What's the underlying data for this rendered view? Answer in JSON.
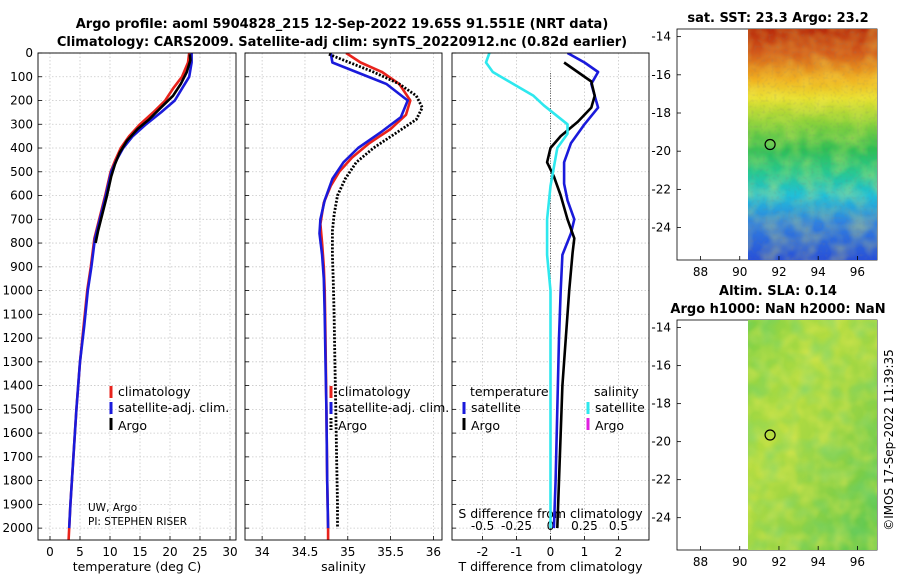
{
  "header": {
    "title_line1": "Argo profile: aoml 5904828_215 12-Sep-2022 19.65S 91.551E (NRT data)",
    "title_line2": "Climatology: CARS2009. Satellite-adj clim: synTS_20220912.nc (0.82d earlier)"
  },
  "colors": {
    "climatology": "#e8231c",
    "satellite": "#1a1adb",
    "argo": "#000000",
    "sat_salinity": "#2ee8ee",
    "argo_salinity": "#e020e0",
    "grid": "#c8c8c8"
  },
  "credit": {
    "line1": "UW, Argo",
    "line2": "PI: STEPHEN RISER"
  },
  "chart_data": [
    {
      "name": "temperature-profile",
      "type": "line",
      "xlabel": "temperature (deg C)",
      "xlim": [
        -2,
        31
      ],
      "xticks": [
        0,
        5,
        10,
        15,
        20,
        25,
        30
      ],
      "ylim": [
        2050,
        0
      ],
      "yticks": [
        0,
        100,
        200,
        300,
        400,
        500,
        600,
        700,
        800,
        900,
        1000,
        1100,
        1200,
        1300,
        1400,
        1500,
        1600,
        1700,
        1800,
        1900,
        2000
      ],
      "legend": [
        "climatology",
        "satellite-adj. clim.",
        "Argo"
      ],
      "series": [
        {
          "name": "climatology",
          "color": "#e8231c",
          "style": "solid",
          "points": [
            [
              23.2,
              0
            ],
            [
              23.0,
              40
            ],
            [
              22.0,
              100
            ],
            [
              20.5,
              150
            ],
            [
              19.2,
              200
            ],
            [
              17.2,
              250
            ],
            [
              15.0,
              300
            ],
            [
              13.2,
              350
            ],
            [
              11.8,
              400
            ],
            [
              10.9,
              450
            ],
            [
              10.1,
              500
            ],
            [
              9.2,
              600
            ],
            [
              8.2,
              700
            ],
            [
              7.4,
              780
            ],
            [
              6.8,
              900
            ],
            [
              6.2,
              1000
            ],
            [
              5.6,
              1150
            ],
            [
              5.0,
              1300
            ],
            [
              4.4,
              1500
            ],
            [
              3.9,
              1700
            ],
            [
              3.4,
              1900
            ],
            [
              3.2,
              2000
            ],
            [
              3.1,
              2050
            ]
          ]
        },
        {
          "name": "satellite-adj. clim.",
          "color": "#1a1adb",
          "style": "solid",
          "points": [
            [
              23.6,
              0
            ],
            [
              23.6,
              40
            ],
            [
              23.2,
              100
            ],
            [
              22.0,
              150
            ],
            [
              20.8,
              200
            ],
            [
              18.5,
              250
            ],
            [
              16.0,
              300
            ],
            [
              13.8,
              350
            ],
            [
              12.2,
              400
            ],
            [
              11.1,
              450
            ],
            [
              10.2,
              500
            ],
            [
              9.3,
              600
            ],
            [
              8.3,
              700
            ],
            [
              7.5,
              780
            ],
            [
              6.9,
              900
            ],
            [
              6.3,
              1000
            ],
            [
              5.7,
              1150
            ],
            [
              5.0,
              1300
            ],
            [
              4.4,
              1500
            ],
            [
              3.9,
              1700
            ],
            [
              3.4,
              1900
            ],
            [
              3.2,
              2000
            ]
          ]
        },
        {
          "name": "Argo",
          "color": "#000000",
          "style": "solid",
          "points": [
            [
              23.3,
              5
            ],
            [
              23.4,
              30
            ],
            [
              22.8,
              80
            ],
            [
              21.8,
              130
            ],
            [
              20.5,
              180
            ],
            [
              18.5,
              230
            ],
            [
              16.5,
              280
            ],
            [
              14.6,
              320
            ],
            [
              12.8,
              370
            ],
            [
              11.6,
              420
            ],
            [
              10.8,
              470
            ],
            [
              10.2,
              520
            ],
            [
              9.5,
              600
            ],
            [
              8.7,
              680
            ],
            [
              8.0,
              750
            ],
            [
              7.6,
              800
            ]
          ]
        }
      ]
    },
    {
      "name": "salinity-profile",
      "type": "line",
      "xlabel": "salinity",
      "xlim": [
        33.8,
        36.1
      ],
      "xticks": [
        34,
        34.5,
        35,
        35.5,
        36
      ],
      "ylim": [
        2050,
        0
      ],
      "legend": [
        "climatology",
        "satellite-adj. clim.",
        "Argo"
      ],
      "series": [
        {
          "name": "climatology",
          "color": "#e8231c",
          "style": "solid",
          "points": [
            [
              34.98,
              0
            ],
            [
              35.15,
              40
            ],
            [
              35.4,
              80
            ],
            [
              35.6,
              130
            ],
            [
              35.73,
              200
            ],
            [
              35.68,
              260
            ],
            [
              35.5,
              320
            ],
            [
              35.25,
              380
            ],
            [
              35.05,
              440
            ],
            [
              34.9,
              500
            ],
            [
              34.8,
              560
            ],
            [
              34.72,
              630
            ],
            [
              34.68,
              720
            ],
            [
              34.7,
              800
            ],
            [
              34.72,
              900
            ],
            [
              34.73,
              1000
            ],
            [
              34.74,
              1200
            ],
            [
              34.75,
              1500
            ],
            [
              34.76,
              1800
            ],
            [
              34.77,
              2000
            ],
            [
              34.77,
              2050
            ]
          ]
        },
        {
          "name": "satellite-adj. clim.",
          "color": "#1a1adb",
          "style": "solid",
          "points": [
            [
              34.8,
              0
            ],
            [
              34.82,
              40
            ],
            [
              35.1,
              80
            ],
            [
              35.45,
              130
            ],
            [
              35.7,
              200
            ],
            [
              35.62,
              270
            ],
            [
              35.4,
              330
            ],
            [
              35.12,
              400
            ],
            [
              34.95,
              460
            ],
            [
              34.82,
              530
            ],
            [
              34.73,
              620
            ],
            [
              34.68,
              700
            ],
            [
              34.67,
              760
            ],
            [
              34.7,
              850
            ],
            [
              34.72,
              950
            ],
            [
              34.73,
              1100
            ],
            [
              34.74,
              1300
            ],
            [
              34.75,
              1500
            ],
            [
              34.76,
              1800
            ],
            [
              34.77,
              2000
            ]
          ]
        },
        {
          "name": "Argo",
          "color": "#000000",
          "style": "dotted",
          "points": [
            [
              34.78,
              5
            ],
            [
              34.95,
              30
            ],
            [
              35.3,
              80
            ],
            [
              35.6,
              130
            ],
            [
              35.8,
              180
            ],
            [
              35.87,
              230
            ],
            [
              35.8,
              280
            ],
            [
              35.55,
              340
            ],
            [
              35.3,
              400
            ],
            [
              35.1,
              460
            ],
            [
              34.97,
              530
            ],
            [
              34.88,
              600
            ],
            [
              34.84,
              680
            ],
            [
              34.82,
              750
            ],
            [
              34.82,
              850
            ],
            [
              34.83,
              950
            ],
            [
              34.84,
              1100
            ],
            [
              34.85,
              1300
            ],
            [
              34.86,
              1500
            ],
            [
              34.87,
              1700
            ],
            [
              34.88,
              1900
            ],
            [
              34.88,
              2000
            ]
          ]
        }
      ]
    },
    {
      "name": "difference-profile",
      "type": "line",
      "xlabel": "T difference from climatology",
      "xlabel2": "S difference from climatology",
      "xlim": [
        -2.9,
        2.9
      ],
      "xticks": [
        -2,
        -1,
        0,
        1,
        2
      ],
      "xticks_top": [
        -0.5,
        -0.25,
        0,
        0.25,
        0.5
      ],
      "xtick_labels_top": [
        "-0.5",
        "-0.25",
        "0",
        "0.25",
        "0.5"
      ],
      "ylim": [
        2050,
        0
      ],
      "legend_temperature_title": "temperature",
      "legend_salinity_title": "salinity",
      "legend": [
        "satellite",
        "Argo",
        "satellite",
        "Argo"
      ],
      "series": [
        {
          "name": "temperature satellite",
          "color": "#1a1adb",
          "points": [
            [
              0.5,
              0
            ],
            [
              1.0,
              40
            ],
            [
              1.4,
              80
            ],
            [
              1.2,
              130
            ],
            [
              1.3,
              180
            ],
            [
              1.4,
              230
            ],
            [
              1.0,
              300
            ],
            [
              0.6,
              380
            ],
            [
              0.4,
              460
            ],
            [
              0.4,
              550
            ],
            [
              0.5,
              620
            ],
            [
              0.7,
              700
            ],
            [
              0.6,
              760
            ],
            [
              0.35,
              850
            ],
            [
              0.3,
              1000
            ],
            [
              0.25,
              1200
            ],
            [
              0.2,
              1500
            ],
            [
              0.15,
              1800
            ],
            [
              0.1,
              2000
            ]
          ]
        },
        {
          "name": "temperature Argo",
          "color": "#000000",
          "points": [
            [
              0.4,
              40
            ],
            [
              0.8,
              80
            ],
            [
              1.2,
              120
            ],
            [
              1.3,
              180
            ],
            [
              1.2,
              230
            ],
            [
              0.8,
              290
            ],
            [
              0.3,
              350
            ],
            [
              0.0,
              400
            ],
            [
              -0.1,
              460
            ],
            [
              0.1,
              520
            ],
            [
              0.3,
              600
            ],
            [
              0.5,
              700
            ],
            [
              0.7,
              780
            ],
            [
              0.65,
              840
            ],
            [
              0.6,
              920
            ],
            [
              0.55,
              1000
            ],
            [
              0.45,
              1200
            ],
            [
              0.35,
              1400
            ],
            [
              0.3,
              1600
            ],
            [
              0.25,
              1800
            ],
            [
              0.2,
              2000
            ]
          ]
        },
        {
          "name": "salinity satellite",
          "color": "#2ee8ee",
          "points": [
            [
              -1.8,
              0
            ],
            [
              -1.9,
              40
            ],
            [
              -1.7,
              80
            ],
            [
              -1.1,
              130
            ],
            [
              -0.5,
              180
            ],
            [
              -0.2,
              220
            ],
            [
              0.5,
              300
            ],
            [
              0.5,
              340
            ],
            [
              0.2,
              400
            ],
            [
              0.1,
              480
            ],
            [
              0.0,
              560
            ],
            [
              -0.1,
              700
            ],
            [
              -0.1,
              850
            ],
            [
              0.0,
              1000
            ],
            [
              0.0,
              1500
            ],
            [
              0.0,
              2000
            ]
          ]
        },
        {
          "name": "salinity Argo",
          "color": "#e020e0",
          "points": []
        }
      ]
    },
    {
      "name": "sst-map",
      "type": "heatmap",
      "title": "sat. SST: 23.3 Argo: 23.2",
      "xticks": [
        88,
        90,
        92,
        94,
        96
      ],
      "yticks": [
        -14,
        -16,
        -18,
        -20,
        -22,
        -24
      ],
      "xlim": [
        86.8,
        97
      ],
      "ylim": [
        -25.7,
        -13.6
      ],
      "marker": {
        "lon": 91.55,
        "lat": -19.65
      }
    },
    {
      "name": "sla-map",
      "type": "heatmap",
      "title_line1": "Altim. SLA: 0.14",
      "title_line2": "Argo h1000: NaN h2000: NaN",
      "xticks": [
        88,
        90,
        92,
        94,
        96
      ],
      "yticks": [
        -14,
        -16,
        -18,
        -20,
        -22,
        -24
      ],
      "xlim": [
        86.8,
        97
      ],
      "ylim": [
        -25.7,
        -13.6
      ],
      "marker": {
        "lon": 91.55,
        "lat": -19.65
      }
    }
  ],
  "stamp": "©IMOS 17-Sep-2022 11:39:35"
}
